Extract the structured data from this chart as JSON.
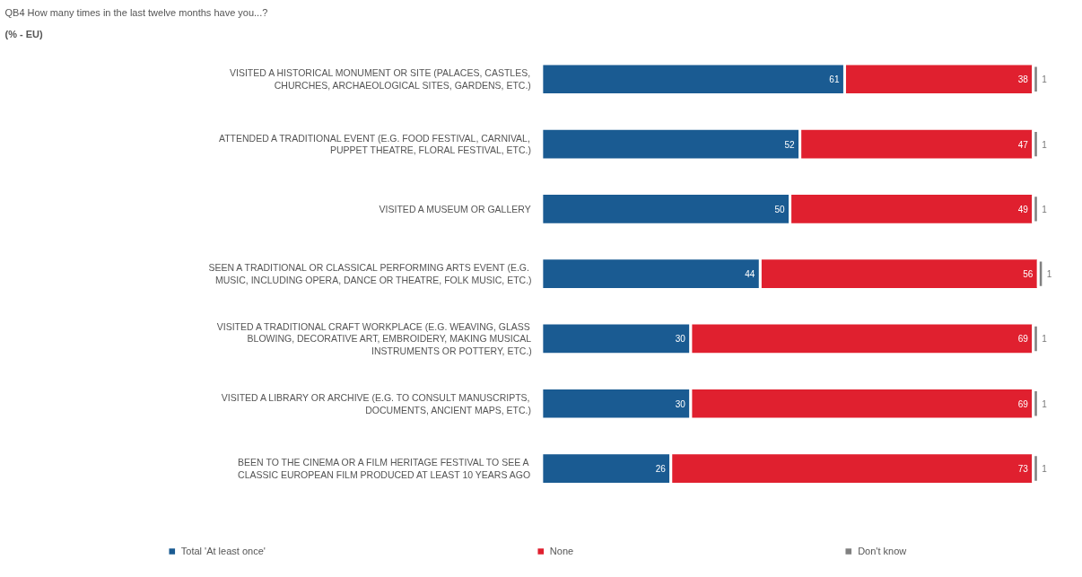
{
  "chart_data": {
    "type": "bar",
    "orientation": "horizontal",
    "stacked": true,
    "title": "QB4 How many times in the last twelve months have you...?",
    "subtitle": "(% - EU)",
    "categories": [
      "VISITED A HISTORICAL MONUMENT OR SITE (PALACES, CASTLES, CHURCHES, ARCHAEOLOGICAL SITES, GARDENS, ETC.)",
      "ATTENDED A TRADITIONAL EVENT (E.G. FOOD FESTIVAL, CARNIVAL, PUPPET THEATRE, FLORAL FESTIVAL, ETC.)",
      "VISITED A MUSEUM OR GALLERY",
      "SEEN A TRADITIONAL OR CLASSICAL PERFORMING ARTS EVENT (E.G. MUSIC, INCLUDING OPERA, DANCE OR THEATRE, FOLK MUSIC, ETC.)",
      "VISITED A TRADITIONAL CRAFT WORKPLACE (E.G. WEAVING, GLASS BLOWING, DECORATIVE ART, EMBROIDERY, MAKING MUSICAL INSTRUMENTS OR POTTERY, ETC.)",
      "VISITED A LIBRARY OR ARCHIVE (E.G. TO CONSULT MANUSCRIPTS, DOCUMENTS, ANCIENT MAPS, ETC.)",
      "BEEN TO THE CINEMA OR A FILM HERITAGE FESTIVAL TO SEE A CLASSIC EUROPEAN FILM PRODUCED AT LEAST 10 YEARS AGO"
    ],
    "series": [
      {
        "name": "Total 'At least once'",
        "color": "#1a5b92",
        "values": [
          61,
          52,
          50,
          44,
          30,
          30,
          26
        ]
      },
      {
        "name": "None",
        "color": "#e0202f",
        "values": [
          38,
          47,
          49,
          56,
          69,
          69,
          73
        ]
      },
      {
        "name": "Don't know",
        "color": "#808080",
        "values": [
          1,
          1,
          1,
          1,
          1,
          1,
          1
        ]
      }
    ],
    "data_labels": true,
    "legend": "bottom",
    "grid": false
  }
}
